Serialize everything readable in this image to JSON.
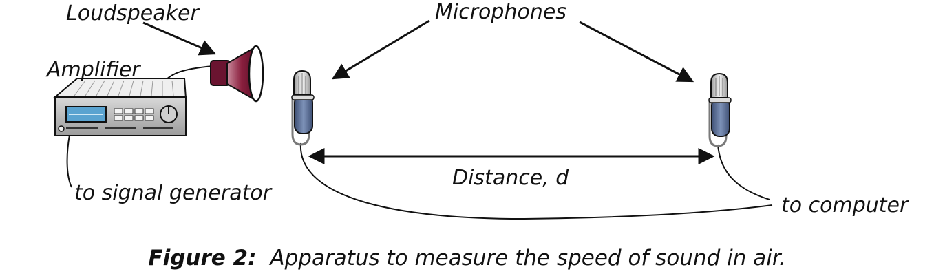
{
  "labels": {
    "loudspeaker": "Loudspeaker",
    "amplifier": "Amplifier",
    "microphones": "Microphones",
    "distance": "Distance, d",
    "signal_generator": "to signal generator",
    "computer": "to computer"
  },
  "caption": {
    "number": "Figure 2:",
    "text": "Apparatus to measure the speed of sound in air."
  },
  "colors": {
    "speaker_cone": "#8a1f3e",
    "mic_body": "#5a6f96",
    "amp_display": "#5aa3d0",
    "line": "#111111"
  }
}
